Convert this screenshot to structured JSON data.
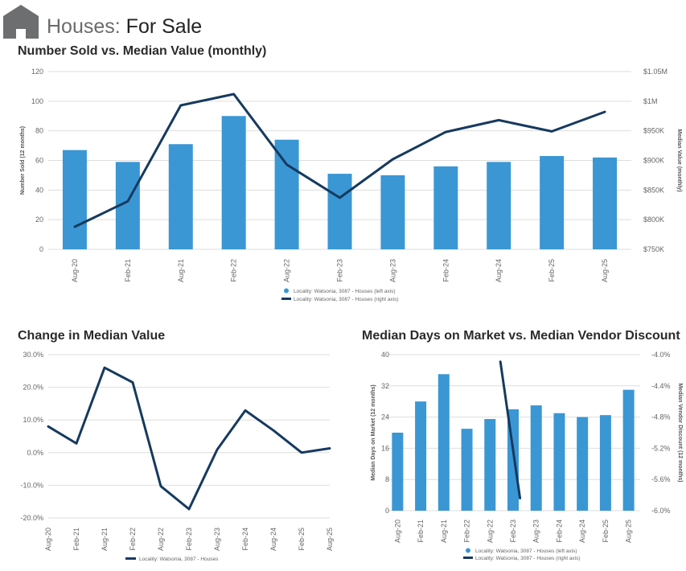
{
  "page": {
    "title_part1": "Houses:",
    "title_part2": "For Sale",
    "icon": "house-icon"
  },
  "colors": {
    "bar": "#3a97d4",
    "line": "#163a5f",
    "grid": "#dedede",
    "axis_text": "#666666",
    "icon_bg": "#6d6e70"
  },
  "chart_data": [
    {
      "id": "c1",
      "type": "bar",
      "title": "Number Sold vs. Median Value (monthly)",
      "categories": [
        "Aug-20",
        "Feb-21",
        "Aug-21",
        "Feb-22",
        "Aug-22",
        "Feb-23",
        "Aug-23",
        "Feb-24",
        "Aug-24",
        "Feb-25",
        "Aug-25"
      ],
      "series": [
        {
          "name": "Locality: Watsonia, 3087 - Houses (left axis)",
          "type": "bar",
          "axis": "left",
          "values": [
            67,
            59,
            71,
            90,
            74,
            51,
            50,
            56,
            59,
            63,
            62
          ]
        },
        {
          "name": "Locality: Watsonia, 3087 - Houses (right axis)",
          "type": "line",
          "axis": "right",
          "values": [
            788000,
            831000,
            993000,
            1012000,
            893000,
            837000,
            902000,
            948000,
            968000,
            949000,
            982000
          ]
        }
      ],
      "ylabel": "Number Sold (12 months)",
      "ylabel_right": "Median Value (monthly)",
      "ylim": [
        0,
        120
      ],
      "yticks": [
        0,
        20,
        40,
        60,
        80,
        100,
        120
      ],
      "ytick_labels": [
        "0",
        "20",
        "40",
        "60",
        "80",
        "100",
        "120"
      ],
      "ylim_right": [
        750000,
        1050000
      ],
      "ytick_labels_right": [
        "$750K",
        "$800K",
        "$850K",
        "$900K",
        "$950K",
        "$1M",
        "$1.05M"
      ],
      "legend": [
        "Locality: Watsonia, 3087 - Houses (left axis)",
        "Locality: Watsonia, 3087 - Houses (right axis)"
      ]
    },
    {
      "id": "c2",
      "type": "line",
      "title": "Change in Median Value",
      "categories": [
        "Aug-20",
        "Feb-21",
        "Aug-21",
        "Feb-22",
        "Aug-22",
        "Feb-23",
        "Aug-23",
        "Feb-24",
        "Aug-24",
        "Feb-25",
        "Aug-25"
      ],
      "series": [
        {
          "name": "Locality: Watsonia, 3087 - Houses",
          "type": "line",
          "values": [
            8.0,
            2.8,
            26.0,
            21.5,
            -10.3,
            -17.3,
            0.9,
            12.9,
            6.8,
            0.0,
            1.3
          ]
        }
      ],
      "ylim": [
        -20,
        30
      ],
      "yticks": [
        -20,
        -10,
        0,
        10,
        20,
        30
      ],
      "ytick_labels": [
        "-20.0%",
        "-10.0%",
        "0.0%",
        "10.0%",
        "20.0%",
        "30.0%"
      ],
      "legend": [
        "Locality: Watsonia, 3087 - Houses"
      ]
    },
    {
      "id": "c3",
      "type": "bar",
      "title": "Median Days on Market vs. Median Vendor Discount",
      "categories": [
        "Aug-20",
        "Feb-21",
        "Aug-21",
        "Feb-22",
        "Aug-22",
        "Feb-23",
        "Aug-23",
        "Feb-24",
        "Aug-24",
        "Feb-25",
        "Aug-25"
      ],
      "series": [
        {
          "name": "Locality: Watsonia, 3087 - Houses (left axis)",
          "type": "bar",
          "axis": "left",
          "values": [
            20,
            28,
            35,
            21,
            23.5,
            26,
            27,
            25,
            24,
            24.5,
            31
          ]
        },
        {
          "name": "Locality: Watsonia, 3087 - Houses (right axis)",
          "type": "line",
          "axis": "right",
          "points": [
            [
              4.95,
              -4.09
            ],
            [
              5.8,
              -5.84
            ]
          ]
        }
      ],
      "ylabel": "Median Days on Market (12 months)",
      "ylabel_right": "Median Vendor Discount (12 months)",
      "ylim": [
        0,
        40
      ],
      "yticks": [
        0,
        8,
        16,
        24,
        32,
        40
      ],
      "ytick_labels": [
        "0",
        "8",
        "16",
        "24",
        "32",
        "40"
      ],
      "ylim_right": [
        -6.0,
        -4.0
      ],
      "ytick_labels_right": [
        "-6.0%",
        "-5.6%",
        "-5.2%",
        "-4.8%",
        "-4.4%",
        "-4.0%"
      ],
      "legend": [
        "Locality: Watsonia, 3087 - Houses (left axis)",
        "Locality: Watsonia, 3087 - Houses (right axis)"
      ]
    }
  ]
}
